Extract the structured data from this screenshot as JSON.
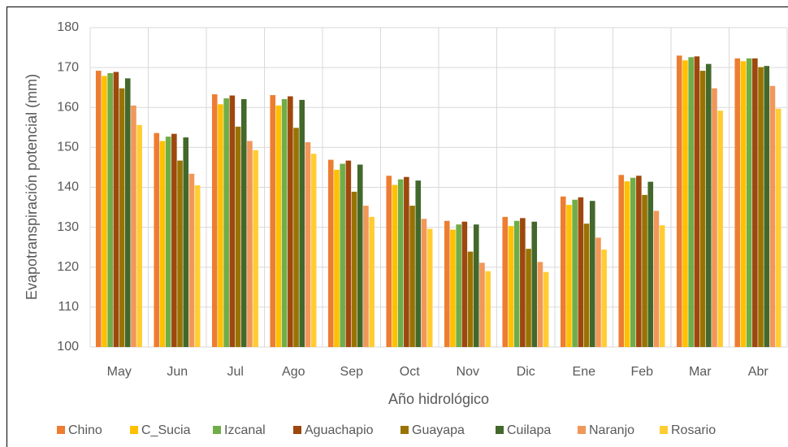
{
  "chart_data": {
    "type": "bar",
    "y_label": "Evapotranspiración potencial (mm)",
    "x_label": "Año hidrológico",
    "categories": [
      "May",
      "Jun",
      "Jul",
      "Ago",
      "Sep",
      "Oct",
      "Nov",
      "Dic",
      "Ene",
      "Feb",
      "Mar",
      "Abr"
    ],
    "ylim": [
      100,
      180
    ],
    "yticks": [
      100,
      110,
      120,
      130,
      140,
      150,
      160,
      170,
      180
    ],
    "grid": true,
    "legend": "bottom",
    "series": [
      {
        "name": "Chino",
        "color": "#ED7D31",
        "values": [
          169.2,
          153.6,
          163.3,
          163.1,
          146.9,
          142.9,
          131.6,
          132.6,
          137.7,
          143.1,
          173.0,
          172.3
        ]
      },
      {
        "name": "C_Sucia",
        "color": "#FFC000",
        "values": [
          167.9,
          151.6,
          160.8,
          160.5,
          144.4,
          140.6,
          129.4,
          130.3,
          135.6,
          141.5,
          171.8,
          171.6
        ]
      },
      {
        "name": "Izcanal",
        "color": "#70AD47",
        "values": [
          168.6,
          152.7,
          162.3,
          162.1,
          145.9,
          142.0,
          130.7,
          131.6,
          136.9,
          142.4,
          172.6,
          172.3
        ]
      },
      {
        "name": "Aguachapio",
        "color": "#9E480E",
        "values": [
          168.9,
          153.4,
          163.0,
          162.8,
          146.7,
          142.6,
          131.4,
          132.3,
          137.5,
          142.9,
          172.8,
          172.3
        ]
      },
      {
        "name": "Guayapa",
        "color": "#997300",
        "values": [
          164.8,
          146.7,
          155.2,
          154.9,
          138.9,
          135.4,
          123.9,
          124.6,
          130.9,
          138.1,
          169.2,
          170.1
        ]
      },
      {
        "name": "Cuilapa",
        "color": "#43682B",
        "values": [
          167.3,
          152.5,
          162.1,
          161.9,
          145.7,
          141.7,
          130.7,
          131.4,
          136.6,
          141.4,
          170.9,
          170.4
        ]
      },
      {
        "name": "Naranjo",
        "color": "#F1975A",
        "values": [
          160.5,
          143.4,
          151.6,
          151.3,
          135.4,
          132.1,
          121.1,
          121.3,
          127.4,
          134.1,
          164.8,
          165.4
        ]
      },
      {
        "name": "Rosario",
        "color": "#FFCD33",
        "values": [
          155.6,
          140.5,
          149.3,
          148.4,
          132.6,
          129.6,
          119.0,
          118.8,
          124.4,
          130.5,
          159.2,
          159.7
        ]
      }
    ]
  }
}
